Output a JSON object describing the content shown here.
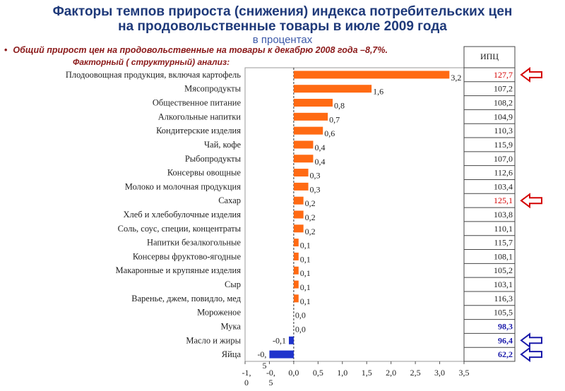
{
  "title_line1": "Факторы темпов прироста (снижения) индекса потребительских цен",
  "title_line2": "на продовольственные товары в июле 2009 года",
  "subtitle": "в процентах",
  "note": "Общий прирост цен на продовольственные на товары к декабрю 2008 года –8,7%.",
  "factor_label": "Факторный ( структурный) анализ:",
  "ipc_header": "ИПЦ",
  "colors": {
    "bar": "#ff6a13",
    "negative_bar": "#1f33cc",
    "highlight_red": "#d40000",
    "highlight_blue": "#1a1aaa",
    "ipc_normal": "#222222"
  },
  "chart_data": {
    "type": "bar",
    "orientation": "horizontal",
    "xlim": [
      -1.0,
      3.5
    ],
    "x_ticks": [
      "-1,\n0",
      "-0,\n5",
      "0,0",
      "0,5",
      "1,0",
      "1,5",
      "2,0",
      "2,5",
      "3,0",
      "3,5"
    ],
    "categories": [
      "Плодоовощная продукция, включая картофель",
      "Мясопродукты",
      "Общественное питание",
      "Алкогольные напитки",
      "Кондитерские изделия",
      "Чай, кофе",
      "Рыбопродукты",
      "Консервы овощные",
      "Молоко и молочная продукция",
      "Сахар",
      "Хлеб и хлебобулочные изделия",
      "Соль, соус, специи, концентраты",
      "Напитки безалкогольные",
      "Консервы фруктово-ягодные",
      "Макаронные и крупяные изделия",
      "Сыр",
      "Варенье, джем, повидло, мед",
      "Мороженое",
      "Мука",
      "Масло и жиры",
      "Яйца"
    ],
    "values": [
      3.2,
      1.6,
      0.8,
      0.7,
      0.6,
      0.4,
      0.4,
      0.3,
      0.3,
      0.2,
      0.2,
      0.2,
      0.1,
      0.1,
      0.1,
      0.1,
      0.1,
      0.0,
      0.0,
      -0.1,
      -0.5
    ],
    "value_labels": [
      "3,2",
      "1,6",
      "0,8",
      "0,7",
      "0,6",
      "0,4",
      "0,4",
      "0,3",
      "0,3",
      "0,2",
      "0,2",
      "0,2",
      "0,1",
      "0,1",
      "0,1",
      "0,1",
      "0,1",
      "0,0",
      "0,0",
      "-0,1",
      "-0,\n5"
    ],
    "ipc": [
      "127,7",
      "107,2",
      "108,2",
      "104,9",
      "110,3",
      "115,9",
      "107,0",
      "112,6",
      "103,4",
      "125,1",
      "103,8",
      "110,1",
      "115,7",
      "108,1",
      "105,2",
      "103,1",
      "116,3",
      "105,5",
      "98,3",
      "96,4",
      "62,2"
    ],
    "ipc_style": [
      "red",
      "normal",
      "normal",
      "normal",
      "normal",
      "normal",
      "normal",
      "normal",
      "normal",
      "red",
      "normal",
      "normal",
      "normal",
      "normal",
      "normal",
      "normal",
      "normal",
      "normal",
      "blue",
      "blue",
      "blue"
    ],
    "arrows": [
      {
        "row": 0,
        "color": "red",
        "direction": "left"
      },
      {
        "row": 9,
        "color": "red",
        "direction": "left"
      },
      {
        "row": 19,
        "color": "blue",
        "direction": "left"
      },
      {
        "row": 20,
        "color": "blue",
        "direction": "left"
      }
    ]
  }
}
